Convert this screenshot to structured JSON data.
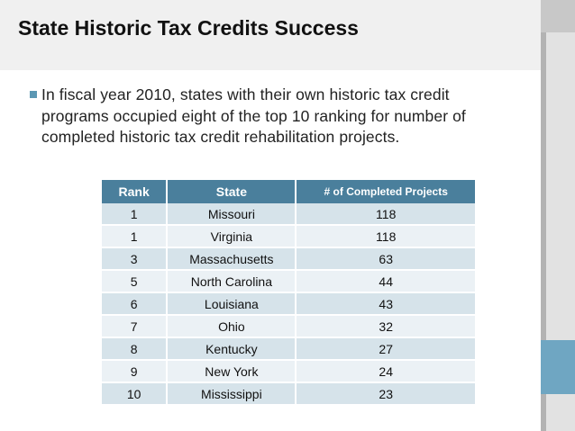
{
  "slide": {
    "title": "State Historic Tax Credits Success",
    "bullet": "In fiscal year 2010, states with their own historic tax credit programs occupied eight of the top 10 ranking for number of completed historic tax credit rehabilitation projects."
  },
  "table": {
    "headers": [
      "Rank",
      "State",
      "# of Completed Projects"
    ],
    "rows": [
      [
        "1",
        "Missouri",
        "118"
      ],
      [
        "1",
        "Virginia",
        "118"
      ],
      [
        "3",
        "Massachusetts",
        "63"
      ],
      [
        "5",
        "North Carolina",
        "44"
      ],
      [
        "6",
        "Louisiana",
        "43"
      ],
      [
        "7",
        "Ohio",
        "32"
      ],
      [
        "8",
        "Kentucky",
        "27"
      ],
      [
        "9",
        "New York",
        "24"
      ],
      [
        "10",
        "Mississippi",
        "23"
      ]
    ]
  },
  "colors": {
    "header_fill": "#4a7f9c",
    "row_odd": "#d6e3ea",
    "row_even": "#ebf1f5",
    "bullet": "#5b97b3",
    "accent_teal": "#6fa6c2"
  }
}
